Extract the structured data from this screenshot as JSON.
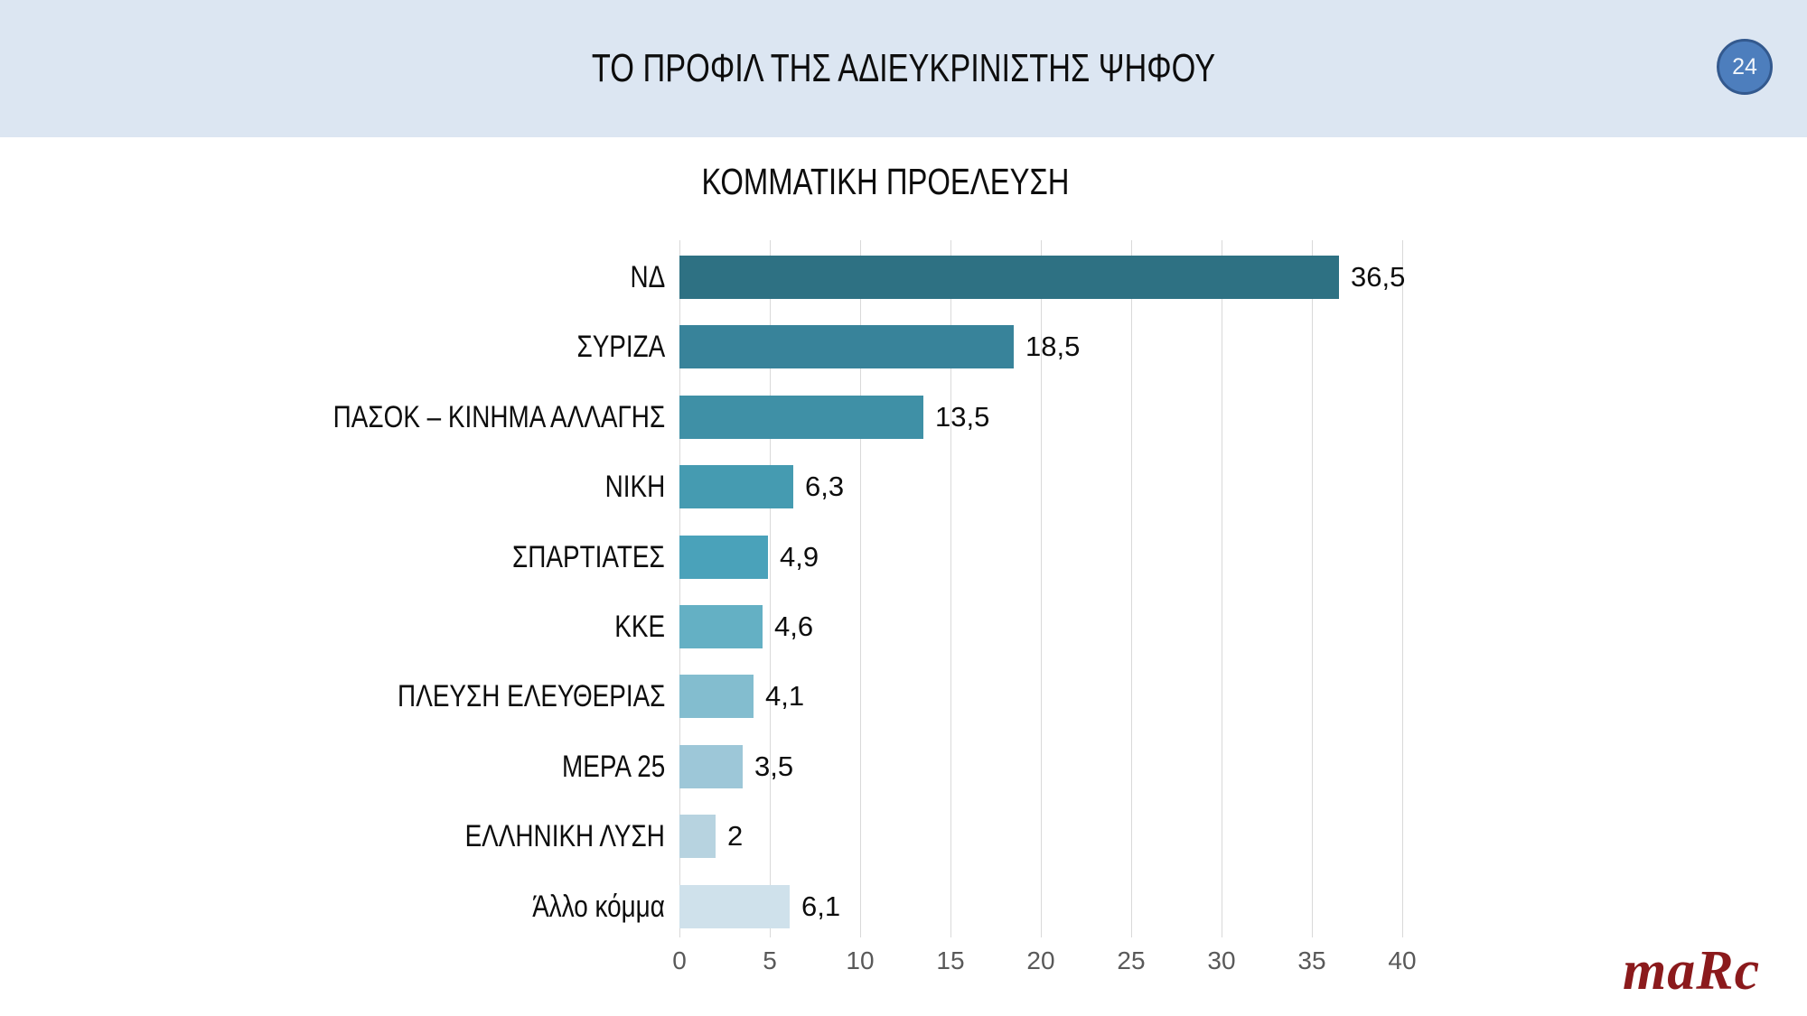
{
  "slide": {
    "title": "ΤΟ ΠΡΟΦΙΛ ΤΗΣ ΑΔΙΕΥΚΡΙΝΙΣΤΗΣ ΨΗΦΟΥ",
    "page_number": "24",
    "logo_text": "maRc"
  },
  "chart_data": {
    "type": "bar",
    "orientation": "horizontal",
    "title": "ΚΟΜΜΑΤΙΚΗ ΠΡΟΕΛΕΥΣΗ",
    "categories": [
      "ΝΔ",
      "ΣΥΡΙΖΑ",
      "ΠΑΣΟΚ – ΚΙΝΗΜΑ ΑΛΛΑΓΗΣ",
      "ΝΙΚΗ",
      "ΣΠΑΡΤΙΑΤΕΣ",
      "ΚΚΕ",
      "ΠΛΕΥΣΗ ΕΛΕΥΘΕΡΙΑΣ",
      "ΜΕΡΑ 25",
      "ΕΛΛΗΝΙΚΗ ΛΥΣΗ",
      "Άλλο κόμμα"
    ],
    "values": [
      36.5,
      18.5,
      13.5,
      6.3,
      4.9,
      4.6,
      4.1,
      3.5,
      2,
      6.1
    ],
    "value_labels": [
      "36,5",
      "18,5",
      "13,5",
      "6,3",
      "4,9",
      "4,6",
      "4,1",
      "3,5",
      "2",
      "6,1"
    ],
    "bar_colors": [
      "#2e7183",
      "#38839a",
      "#3f90a6",
      "#459bb1",
      "#4aa2ba",
      "#64b0c4",
      "#83bdcf",
      "#9dc7d8",
      "#b7d3e0",
      "#cfe1eb"
    ],
    "x_ticks": [
      0,
      5,
      10,
      15,
      20,
      25,
      30,
      35,
      40
    ],
    "xlim": [
      0,
      40
    ],
    "grid": true,
    "xlabel": "",
    "ylabel": ""
  },
  "colors": {
    "header_background": "#dce6f2",
    "badge_fill": "#4d7ebd",
    "badge_border": "#33598e",
    "gridline": "#d9d9d9",
    "tick_text": "#595959",
    "logo_text": "#8b1a1c"
  }
}
